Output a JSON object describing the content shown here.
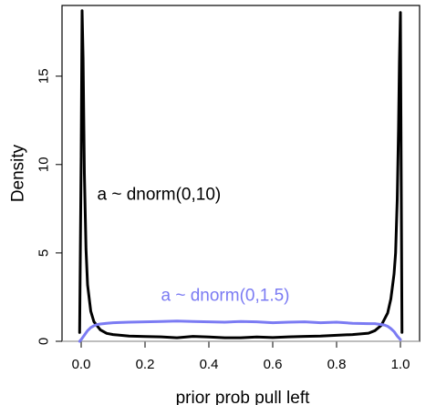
{
  "chart_data": {
    "type": "line",
    "xlabel": "prior prob pull left",
    "ylabel": "Density",
    "xlim": [
      -0.06,
      1.06
    ],
    "ylim": [
      0,
      19
    ],
    "xticks": [
      0.0,
      0.2,
      0.4,
      0.6,
      0.8,
      1.0
    ],
    "xtick_labels": [
      "0.0",
      "0.2",
      "0.4",
      "0.6",
      "0.8",
      "1.0"
    ],
    "yticks": [
      0,
      5,
      10,
      15
    ],
    "ytick_labels": [
      "0",
      "5",
      "10",
      "15"
    ],
    "grid": false,
    "series": [
      {
        "color": "#000000",
        "x": [
          -0.005,
          0.0,
          0.003,
          0.006,
          0.01,
          0.015,
          0.02,
          0.03,
          0.04,
          0.06,
          0.08,
          0.1,
          0.15,
          0.2,
          0.25,
          0.3,
          0.35,
          0.4,
          0.45,
          0.5,
          0.55,
          0.6,
          0.65,
          0.7,
          0.75,
          0.8,
          0.85,
          0.9,
          0.92,
          0.94,
          0.96,
          0.97,
          0.98,
          0.985,
          0.99,
          0.994,
          0.997,
          1.0,
          1.005
        ],
        "y": [
          0.5,
          10.5,
          18.7,
          16.0,
          9.5,
          5.2,
          3.2,
          1.7,
          1.1,
          0.65,
          0.45,
          0.38,
          0.3,
          0.27,
          0.25,
          0.2,
          0.28,
          0.24,
          0.2,
          0.2,
          0.24,
          0.21,
          0.25,
          0.28,
          0.3,
          0.34,
          0.38,
          0.46,
          0.6,
          0.9,
          1.6,
          2.4,
          3.8,
          5.0,
          8.0,
          12.0,
          15.8,
          18.6,
          0.5
        ]
      },
      {
        "color": "#7b7bf3",
        "x": [
          -0.005,
          0.0,
          0.01,
          0.02,
          0.03,
          0.04,
          0.05,
          0.06,
          0.08,
          0.1,
          0.15,
          0.2,
          0.25,
          0.3,
          0.35,
          0.4,
          0.45,
          0.5,
          0.55,
          0.6,
          0.65,
          0.7,
          0.75,
          0.8,
          0.85,
          0.9,
          0.92,
          0.94,
          0.95,
          0.96,
          0.97,
          0.98,
          0.99,
          1.0
        ],
        "y": [
          0.0,
          0.1,
          0.35,
          0.6,
          0.78,
          0.88,
          0.95,
          0.98,
          1.02,
          1.05,
          1.08,
          1.1,
          1.12,
          1.15,
          1.12,
          1.1,
          1.08,
          1.12,
          1.1,
          1.05,
          1.08,
          1.1,
          1.05,
          1.08,
          1.02,
          1.0,
          1.0,
          0.95,
          0.92,
          0.85,
          0.72,
          0.55,
          0.3,
          0.1
        ]
      }
    ],
    "annotations": [
      {
        "text": "a ~ dnorm(0,10)",
        "x": 0.05,
        "y": 8.0,
        "color": "#000000"
      },
      {
        "text": "a ~ dnorm(0,1.5)",
        "x": 0.25,
        "y": 2.3,
        "color": "#7b7bf3"
      }
    ]
  }
}
